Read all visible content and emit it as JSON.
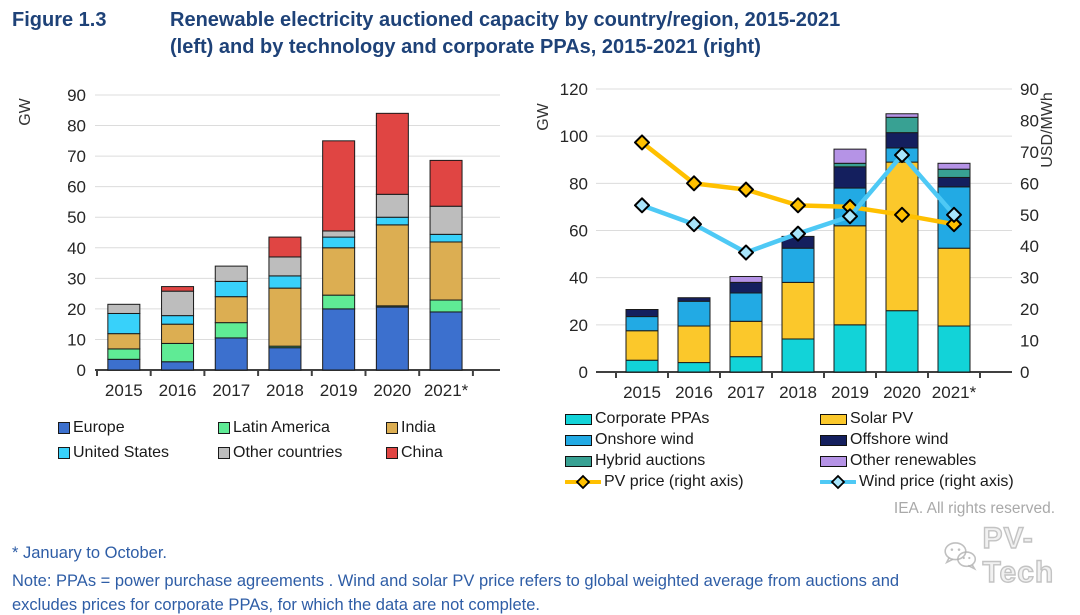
{
  "header": {
    "figure_label": "Figure 1.3",
    "title_line1": "Renewable electricity auctioned capacity by country/region, 2015-2021",
    "title_line2": "(left) and by technology and corporate PPAs, 2015-2021 (right)"
  },
  "chart_data": [
    {
      "id": "left",
      "type": "bar",
      "stacked": true,
      "title": "Renewable electricity auctioned capacity by country/region, 2015-2021",
      "ylabel": "GW",
      "ylim": [
        0,
        90
      ],
      "ytick_step": 10,
      "grid": true,
      "legend_position": "bottom",
      "categories": [
        "2015",
        "2016",
        "2017",
        "2018",
        "2019",
        "2020",
        "2021*"
      ],
      "series": [
        {
          "name": "Europe",
          "color": "#3C70CE",
          "values": [
            3.5,
            2.7,
            10.5,
            7.3,
            20,
            20.6,
            19
          ]
        },
        {
          "name": "Latin America",
          "color": "#5FEB95",
          "values": [
            3.4,
            6,
            5,
            0.5,
            4.5,
            0.4,
            3.9
          ]
        },
        {
          "name": "India",
          "color": "#DCAE52",
          "values": [
            5,
            6.3,
            8.5,
            19,
            15.5,
            26.5,
            19
          ]
        },
        {
          "name": "United States",
          "color": "#38D1FA",
          "values": [
            6.6,
            2.8,
            5,
            4,
            3.5,
            2.5,
            2.5
          ]
        },
        {
          "name": "Other countries",
          "color": "#BDBDBD",
          "values": [
            3,
            8,
            5,
            6.2,
            2,
            7.5,
            9.2
          ]
        },
        {
          "name": "China",
          "color": "#E04543",
          "values": [
            0,
            1.5,
            0,
            6.5,
            29.5,
            26.5,
            15
          ]
        }
      ]
    },
    {
      "id": "right",
      "type": "bar+line",
      "stacked": true,
      "title": "Renewable electricity auctioned capacity by technology and corporate PPAs, 2015-2021",
      "left_axis": {
        "label": "GW",
        "lim": [
          0,
          120
        ],
        "tick_step": 20
      },
      "right_axis": {
        "label": "USD/MWh",
        "lim": [
          0,
          90
        ],
        "tick_step": 10
      },
      "grid": true,
      "legend_position": "bottom",
      "categories": [
        "2015",
        "2016",
        "2017",
        "2018",
        "2019",
        "2020",
        "2021*"
      ],
      "series": [
        {
          "name": "Corporate PPAs",
          "color": "#12D3D8",
          "values": [
            5,
            4,
            6.5,
            14,
            20,
            26,
            19.5
          ]
        },
        {
          "name": "Solar PV",
          "color": "#FBC82B",
          "values": [
            12.5,
            15.5,
            15,
            24,
            42,
            63,
            33
          ]
        },
        {
          "name": "Onshore wind",
          "color": "#22AAE4",
          "values": [
            6,
            10.5,
            12,
            14.5,
            16,
            6,
            26
          ]
        },
        {
          "name": "Offshore wind",
          "color": "#141F5E",
          "values": [
            3,
            1.5,
            4.5,
            5,
            9,
            6.5,
            4
          ]
        },
        {
          "name": "Hybrid auctions",
          "color": "#38A193",
          "values": [
            0,
            0,
            0,
            0,
            1.5,
            6.5,
            3.5
          ]
        },
        {
          "name": "Other renewables",
          "color": "#B593E6",
          "values": [
            0,
            0,
            2.5,
            0,
            6,
            1.5,
            2.5
          ]
        }
      ],
      "lines": [
        {
          "name": "PV price (right axis)",
          "color": "#FFC000",
          "marker_fill": "#FFC000",
          "values": [
            73,
            60,
            58,
            53,
            52.5,
            50,
            47
          ]
        },
        {
          "name": "Wind price (right axis)",
          "color": "#4EC9F5",
          "marker_fill": "#A8E5FB",
          "values": [
            53,
            47,
            38,
            44,
            49.5,
            69,
            50
          ]
        }
      ]
    }
  ],
  "footer": {
    "credit": "IEA. All rights reserved.",
    "footnote": "* January to October.",
    "note_line1": "Note: PPAs = power purchase agreements . Wind and solar PV price refers to global weighted average from auctions and",
    "note_line2": "excludes prices for corporate PPAs, for which the data are not complete.",
    "watermark": "PV-Tech"
  }
}
